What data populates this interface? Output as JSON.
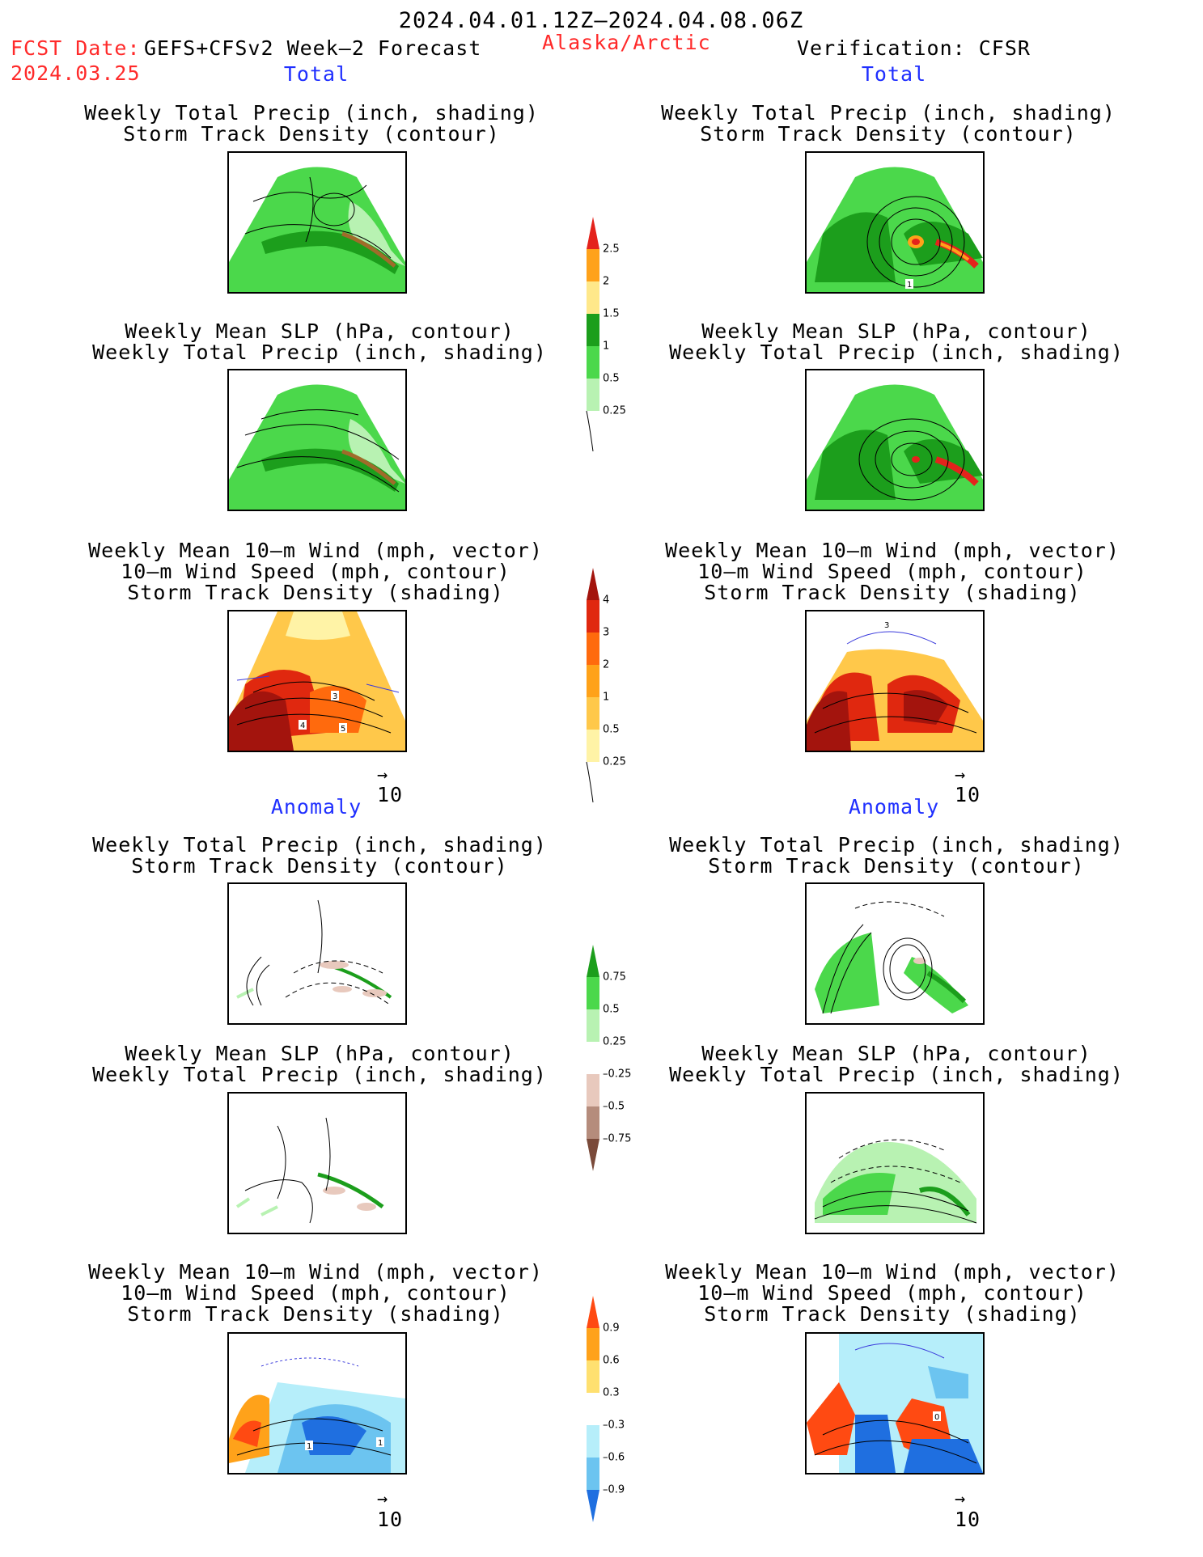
{
  "header": {
    "date_range": "2024.04.01.12Z–2024.04.08.06Z",
    "fcst_prefix": "FCST Date:",
    "fcst_model": "GEFS+CFSv2 Week–2 Forecast",
    "fcst_date": "2024.03.25",
    "region": "Alaska/Arctic",
    "verification": "Verification: CFSR"
  },
  "sections": {
    "left_total": "Total",
    "right_total": "Total",
    "left_anomaly": "Anomaly",
    "right_anomaly": "Anomaly"
  },
  "panel_titles": {
    "precip_track": [
      "Weekly Total Precip (inch, shading)",
      "Storm Track Density (contour)"
    ],
    "slp_precip": [
      "Weekly Mean SLP (hPa, contour)",
      "Weekly Total Precip (inch, shading)"
    ],
    "wind_track": [
      "Weekly Mean 10–m Wind (mph, vector)",
      "10–m Wind Speed (mph, contour)",
      "Storm Track Density (shading)"
    ]
  },
  "vector_reference": "10",
  "map_labels": {
    "fcst_total_wind": [
      "3",
      "4",
      "5"
    ],
    "verif_total_precip": [
      "1"
    ],
    "verif_total_wind": [
      "3"
    ],
    "fcst_anom_wind": [
      "1",
      "1"
    ],
    "verif_anom_wind": [
      "0"
    ]
  },
  "colorbars": {
    "precip_total": {
      "labels": [
        "2.5",
        "2",
        "1.5",
        "1",
        "0.5",
        "0.25"
      ],
      "colors": [
        "#e4231c",
        "#ffa21a",
        "#ffe88a",
        "#1c9e1c",
        "#4bd84b",
        "#b8f2b2"
      ]
    },
    "track_total": {
      "labels": [
        "4",
        "3",
        "2",
        "1",
        "0.5",
        "0.25"
      ],
      "colors": [
        "#a3140d",
        "#e0280f",
        "#ff6a0d",
        "#ffa219",
        "#ffc84a",
        "#fff3a6"
      ]
    },
    "precip_anom": {
      "labels": [
        "0.75",
        "0.5",
        "0.25",
        "–0.25",
        "–0.5",
        "–0.75"
      ],
      "colors": [
        "#1c9e1c",
        "#4bd84b",
        "#b8f2b2",
        "#e8c9bd",
        "#b58c7c",
        "#7a4a3a"
      ]
    },
    "track_anom": {
      "labels": [
        "0.9",
        "0.6",
        "0.3",
        "–0.3",
        "–0.6",
        "–0.9"
      ],
      "colors": [
        "#ff4a12",
        "#ffa21a",
        "#ffe070",
        "#b6eefa",
        "#6cc4f0",
        "#1f6fe0"
      ]
    }
  }
}
